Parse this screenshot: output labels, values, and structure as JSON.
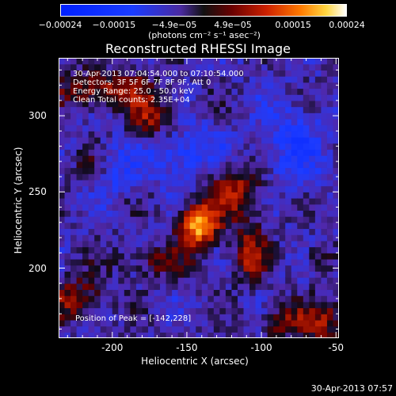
{
  "colorbar": {
    "tick_labels": [
      "−0.00024",
      "−0.00015",
      "−4.9e−05",
      "4.9e−05",
      "0.00015",
      "0.00024"
    ],
    "tick_values": [
      -0.00024,
      -0.00015,
      -4.9e-05,
      4.9e-05,
      0.00015,
      0.00024
    ],
    "range": [
      -0.00024,
      0.00024
    ],
    "unit_label": "(photons cm⁻² s⁻¹ asec⁻²)"
  },
  "chart_data": {
    "type": "heatmap",
    "title": "Reconstructed RHESSI Image",
    "xlabel": "Heliocentric X (arcsec)",
    "ylabel": "Heliocentric Y (arcsec)",
    "xlim": [
      -236,
      -48
    ],
    "ylim": [
      154,
      338
    ],
    "xticks": [
      -200,
      -150,
      -100,
      -50
    ],
    "yticks": [
      200,
      250,
      300
    ],
    "annotations": [
      "30-Apr-2013 07:04:54.000 to 07:10:54.000",
      "Detectors: 3F 5F 6F 7F 8F 9F, Att 0",
      "Energy Range: 25.0 - 50.0 keV",
      "Clean    Total counts: 2.35E+04"
    ],
    "peak_label": "Position of Peak = [-142,228]",
    "peak": [
      -142,
      228
    ],
    "sources": [
      {
        "x": -142,
        "y": 228,
        "sx": 9,
        "sy": 9,
        "amp": 0.00024
      },
      {
        "x": -118,
        "y": 252,
        "sx": 14,
        "sy": 12,
        "amp": 0.00012
      },
      {
        "x": -108,
        "y": 210,
        "sx": 8,
        "sy": 14,
        "amp": 0.00011
      },
      {
        "x": -172,
        "y": 205,
        "sx": 18,
        "sy": 7,
        "amp": 7e-05
      },
      {
        "x": -205,
        "y": 318,
        "sx": 22,
        "sy": 8,
        "amp": 0.00012
      },
      {
        "x": -175,
        "y": 300,
        "sx": 10,
        "sy": 10,
        "amp": 0.00011
      },
      {
        "x": -225,
        "y": 180,
        "sx": 14,
        "sy": 10,
        "amp": 0.0001
      },
      {
        "x": -215,
        "y": 265,
        "sx": 8,
        "sy": 8,
        "amp": 7e-05
      },
      {
        "x": -58,
        "y": 165,
        "sx": 12,
        "sy": 10,
        "amp": 0.0001
      },
      {
        "x": -85,
        "y": 165,
        "sx": 10,
        "sy": 8,
        "amp": 8e-05
      },
      {
        "x": -62,
        "y": 208,
        "sx": 6,
        "sy": 6,
        "amp": 6e-05
      }
    ],
    "negative_regions": [
      {
        "x": -150,
        "y": 275,
        "sx": 18,
        "sy": 12,
        "amp": -8e-05
      },
      {
        "x": -200,
        "y": 265,
        "sx": 12,
        "sy": 12,
        "amp": -6e-05
      },
      {
        "x": -80,
        "y": 280,
        "sx": 16,
        "sy": 20,
        "amp": -7e-05
      }
    ],
    "grid": false,
    "colormap": "blue-black-red-yellow-white"
  },
  "timestamp": "30-Apr-2013 07:57"
}
